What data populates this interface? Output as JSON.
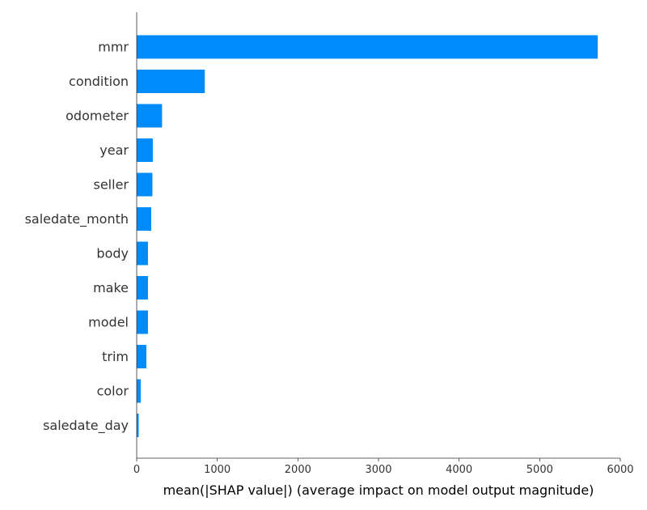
{
  "chart_data": {
    "type": "bar",
    "orientation": "horizontal",
    "title": "",
    "xlabel": "mean(|SHAP value|) (average impact on model output magnitude)",
    "ylabel": "",
    "xlim": [
      0,
      6000
    ],
    "x_ticks": [
      0,
      1000,
      2000,
      3000,
      4000,
      5000,
      6000
    ],
    "x_tick_labels": [
      "0",
      "1000",
      "2000",
      "3000",
      "4000",
      "5000",
      "6000"
    ],
    "grid": false,
    "legend": "none",
    "bar_color": "#008bfb",
    "categories": [
      "mmr",
      "condition",
      "odometer",
      "year",
      "seller",
      "saledate_month",
      "body",
      "make",
      "model",
      "trim",
      "color",
      "saledate_day"
    ],
    "values": [
      5720,
      845,
      315,
      200,
      195,
      180,
      140,
      140,
      140,
      120,
      50,
      25
    ]
  }
}
